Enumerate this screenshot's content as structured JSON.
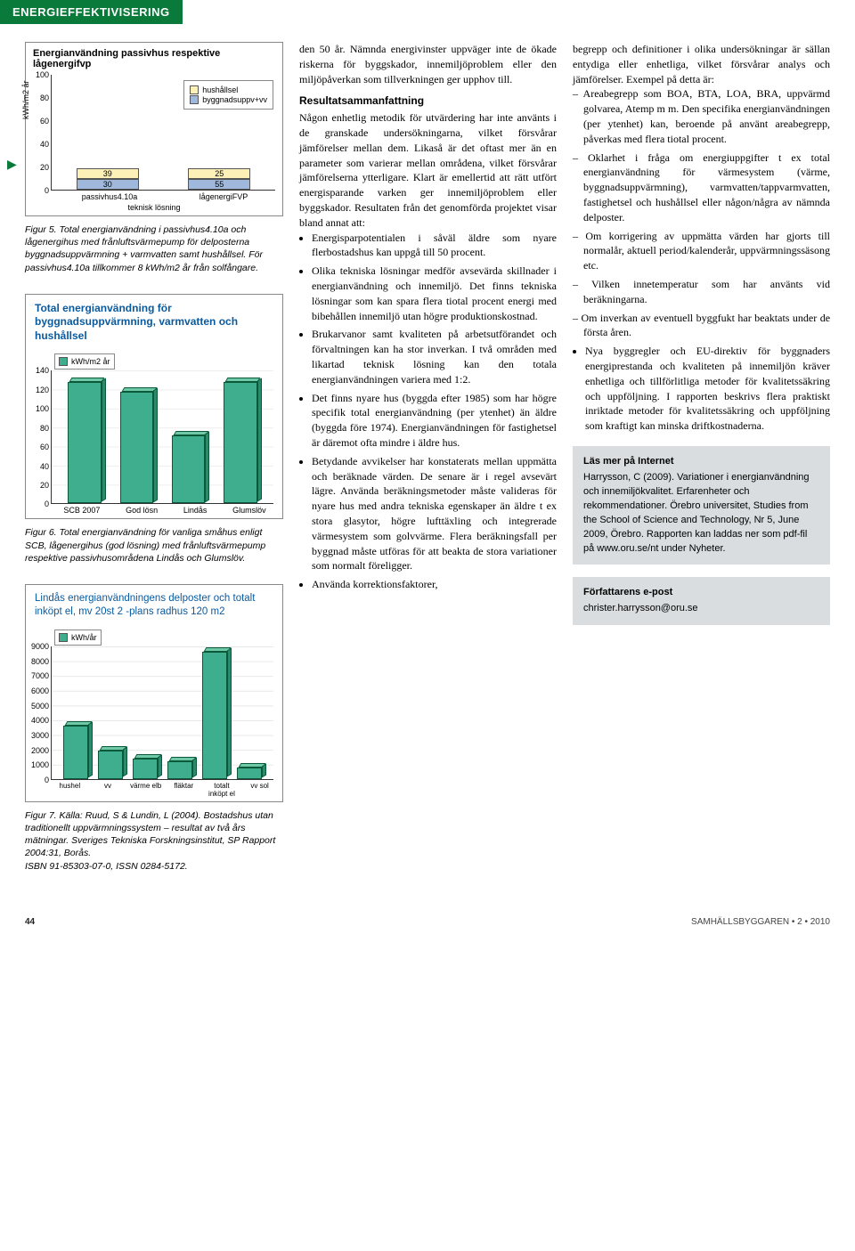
{
  "header": {
    "section": "ENERGIEFFEKTIVISERING"
  },
  "chart1": {
    "title": "Energianvändning passivhus respektive lågenergifvp",
    "ylabel": "kWh/m2 år",
    "ylim": [
      0,
      100
    ],
    "ytick_step": 20,
    "categories": [
      "passivhus4.10a",
      "lågenergiFVP"
    ],
    "x_axis_title": "teknisk lösning",
    "series": [
      {
        "name": "hushållsel",
        "color": "#fdf1b8"
      },
      {
        "name": "byggnadsuppv+vv",
        "color": "#9fb8db"
      }
    ],
    "stacks": [
      {
        "seg1_label": "39",
        "seg1_h": 39,
        "seg2_label": "30",
        "seg2_h": 30
      },
      {
        "seg1_label": "25",
        "seg1_h": 25,
        "seg2_label": "55",
        "seg2_h": 55
      }
    ],
    "bar_width": 0.28,
    "background_color": "#ffffff"
  },
  "caption1": "Figur 5. Total energianvändning i passivhus4.10a och lågenergihus med frånluftsvärmepump för delposterna byggnadsuppvärmning + varmvatten samt hushållsel. För passivhus4.10a tillkommer 8 kWh/m2 år från solfångare.",
  "chart2": {
    "title": "Total energianvändning för byggnadsuppvärmning, varmvatten och hushållsel",
    "legend_label": "kWh/m2 år",
    "ylim": [
      0,
      140
    ],
    "ytick_step": 20,
    "categories": [
      "SCB 2007",
      "God lösn",
      "Lindås",
      "Glumslöv"
    ],
    "values": [
      128,
      118,
      72,
      128
    ],
    "bar_face": "#3fae8e",
    "bar_top": "#6fc8a8",
    "bar_side": "#2a8a6e",
    "grid_color": "#e8e8e8"
  },
  "caption2": "Figur 6. Total energianvändning för vanliga småhus enligt SCB, lågenergihus (god lösning) med frånluftsvärmepump respektive passivhusområdena Lindås och Glumslöv.",
  "chart3": {
    "title": "Lindås energianvändningens delposter och totalt inköpt el, mv 20st 2 -plans radhus 120 m2",
    "legend_label": "kWh/år",
    "ylim": [
      0,
      9000
    ],
    "ytick_step": 1000,
    "categories": [
      "hushel",
      "vv",
      "värme elb",
      "fläktar",
      "totalt inköpt el",
      "vv sol"
    ],
    "values": [
      3600,
      1900,
      1400,
      1200,
      8600,
      800
    ],
    "bar_face": "#3fae8e",
    "bar_top": "#6fc8a8",
    "bar_side": "#2a8a6e"
  },
  "caption3": "Figur 7. Källa: Ruud, S & Lundin, L (2004). Bostadshus utan traditionellt uppvärmningssystem – resultat av två års mätningar. Sveriges Tekniska Forskningsinstitut, SP Rapport 2004:31, Borås.\nISBN 91-85303-07-0, ISSN 0284-5172.",
  "mid": {
    "p0": "den 50 år. Nämnda energivinster uppväger inte de ökade riskerna för byggskador, innemiljöproblem eller den miljöpåverkan som tillverkningen ger upphov till.",
    "h1": "Resultatsammanfattning",
    "p1": "Någon enhetlig metodik för utvärdering har inte använts i de granskade undersökningarna, vilket försvårar jämförelser mellan dem. Likaså är det oftast mer än en parameter som varierar mellan områdena, vilket försvårar jämförelserna ytterligare. Klart är emellertid att rätt utfört energisparande varken ger innemiljöproblem eller byggskador. Resultaten från det genomförda projektet visar bland annat att:",
    "b1": "Energisparpotentialen i såväl äldre som nyare flerbostadshus kan uppgå till 50 procent.",
    "b2": "Olika tekniska lösningar medför avsevärda skillnader i energianvändning och innemiljö. Det finns tekniska lösningar som kan spara flera tiotal procent energi med bibehållen innemiljö utan högre produktionskostnad.",
    "b3": "Brukarvanor samt kvaliteten på arbetsutförandet och förvaltningen kan ha stor inverkan. I två områden med likartad teknisk lösning kan den totala energianvändningen variera med 1:2.",
    "b4": "Det finns nyare hus (byggda efter 1985) som har högre specifik total energianvändning (per ytenhet) än äldre (byggda före 1974). Energianvändningen för fastighetsel är däremot ofta mindre i äldre hus.",
    "b5": "Betydande avvikelser har konstaterats mellan uppmätta och beräknade värden. De senare är i regel avsevärt lägre. Använda beräkningsmetoder måste valideras för nyare hus med andra tekniska egenskaper än äldre t ex stora glasytor, högre lufttäxling och integrerade värmesystem som golvvärme. Flera beräkningsfall per byggnad måste utföras för att beakta de stora variationer som normalt föreligger.",
    "b6": "Använda korrektionsfaktorer,"
  },
  "right": {
    "p0": "begrepp och definitioner i olika undersökningar är sällan entydiga eller enhetliga, vilket försvårar analys och jämförelser. Exempel på detta är:",
    "d1": "Areabegrepp som BOA, BTA, LOA, BRA, uppvärmd golvarea, Atemp m m. Den specifika energianvändningen (per ytenhet) kan, beroende på använt areabegrepp, påverkas med flera tiotal procent.",
    "d2": "Oklarhet i fråga om energiuppgifter t ex total energianvändning för värmesystem (värme, byggnadsuppvärmning), varmvatten/tappvarmvatten, fastighetsel och hushållsel eller någon/några av nämnda delposter.",
    "d3": "Om korrigering av uppmätta värden har gjorts till normalår, aktuell period/kalenderår, uppvärmningssäsong etc.",
    "d4": "Vilken innetemperatur som har använts vid beräkningarna.",
    "d5": "Om inverkan av eventuell byggfukt har beaktats under de första åren.",
    "b1": "Nya byggregler och EU-direktiv för byggnaders energiprestanda och kvaliteten på innemiljön kräver enhetliga och tillförlitliga metoder för kvalitetssäkring och uppföljning. I rapporten beskrivs flera praktiskt inriktade metoder för kvalitetssäkring och uppföljning som kraftigt kan minska driftkostnaderna."
  },
  "infobox1": {
    "head": "Läs mer på Internet",
    "body": "Harrysson, C (2009). Variationer i energianvändning och innemiljökvalitet. Erfarenheter och rekommendationer. Örebro universitet, Studies from the School of Science and Technology, Nr 5, June 2009, Örebro. Rapporten kan laddas ner som pdf-fil på www.oru.se/nt under Nyheter."
  },
  "infobox2": {
    "head": "Författarens e-post",
    "body": "christer.harrysson@oru.se"
  },
  "footer": {
    "page": "44",
    "pub": "SAMHÄLLSBYGGAREN • 2 • 2010"
  }
}
